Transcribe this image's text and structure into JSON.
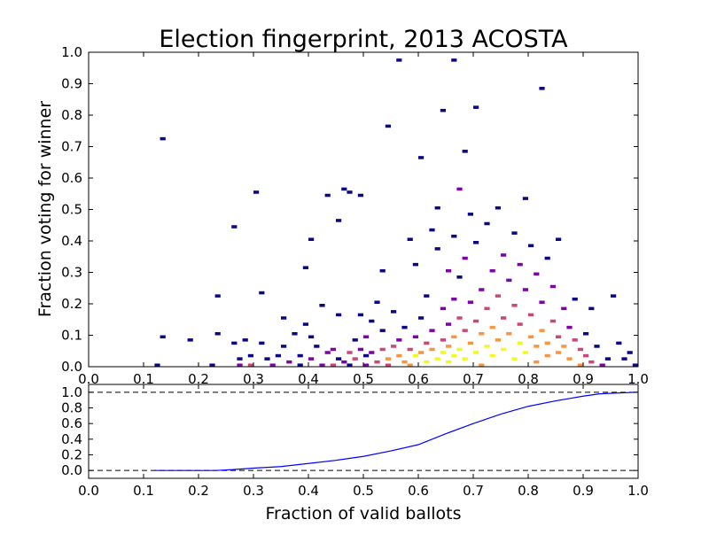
{
  "chart_data": [
    {
      "type": "heatmap",
      "title": "Election fingerprint, 2013 ACOSTA",
      "xlabel": "",
      "ylabel": "Fraction voting for winner",
      "xlim": [
        0.0,
        1.0
      ],
      "ylim": [
        0.0,
        1.0
      ],
      "x_ticks": [
        "0.0",
        "0.1",
        "0.2",
        "0.3",
        "0.4",
        "0.5",
        "0.6",
        "0.7",
        "0.8",
        "0.9",
        "1.0"
      ],
      "y_ticks": [
        "0.0",
        "0.1",
        "0.2",
        "0.3",
        "0.4",
        "0.5",
        "0.6",
        "0.7",
        "0.8",
        "0.9",
        "1.0"
      ],
      "bin_size": 0.01,
      "colormap": [
        "#0c0786",
        "#7e03a8",
        "#cb4778",
        "#f89540",
        "#f0f921"
      ],
      "grid": false,
      "cells": [
        [
          0.13,
          0.72,
          1
        ],
        [
          0.13,
          0.09,
          1
        ],
        [
          0.12,
          0.0,
          1
        ],
        [
          0.18,
          0.08,
          1
        ],
        [
          0.22,
          0.0,
          1
        ],
        [
          0.23,
          0.22,
          1
        ],
        [
          0.23,
          0.1,
          1
        ],
        [
          0.26,
          0.44,
          1
        ],
        [
          0.26,
          0.07,
          1
        ],
        [
          0.27,
          0.02,
          1
        ],
        [
          0.27,
          0.0,
          2
        ],
        [
          0.28,
          0.08,
          1
        ],
        [
          0.29,
          0.03,
          1
        ],
        [
          0.29,
          0.0,
          3
        ],
        [
          0.3,
          0.55,
          1
        ],
        [
          0.31,
          0.23,
          1
        ],
        [
          0.31,
          0.07,
          1
        ],
        [
          0.32,
          0.02,
          1
        ],
        [
          0.33,
          0.0,
          2
        ],
        [
          0.34,
          0.03,
          1
        ],
        [
          0.35,
          0.15,
          1
        ],
        [
          0.35,
          0.06,
          1
        ],
        [
          0.36,
          0.01,
          2
        ],
        [
          0.37,
          0.1,
          1
        ],
        [
          0.38,
          0.03,
          1
        ],
        [
          0.38,
          0.0,
          1
        ],
        [
          0.39,
          0.13,
          1
        ],
        [
          0.39,
          0.31,
          1
        ],
        [
          0.4,
          0.4,
          1
        ],
        [
          0.4,
          0.09,
          1
        ],
        [
          0.4,
          0.02,
          2
        ],
        [
          0.41,
          0.06,
          1
        ],
        [
          0.42,
          0.19,
          1
        ],
        [
          0.42,
          0.0,
          2
        ],
        [
          0.43,
          0.54,
          1
        ],
        [
          0.43,
          0.04,
          2
        ],
        [
          0.44,
          0.05,
          2
        ],
        [
          0.44,
          0.0,
          3
        ],
        [
          0.45,
          0.46,
          1
        ],
        [
          0.45,
          0.16,
          1
        ],
        [
          0.45,
          0.02,
          1
        ],
        [
          0.46,
          0.56,
          1
        ],
        [
          0.46,
          0.01,
          2
        ],
        [
          0.47,
          0.55,
          1
        ],
        [
          0.47,
          0.04,
          3
        ],
        [
          0.47,
          0.0,
          1
        ],
        [
          0.48,
          0.08,
          1
        ],
        [
          0.48,
          0.02,
          3
        ],
        [
          0.49,
          0.54,
          1
        ],
        [
          0.49,
          0.16,
          1
        ],
        [
          0.49,
          0.05,
          2
        ],
        [
          0.5,
          0.09,
          2
        ],
        [
          0.5,
          0.03,
          1
        ],
        [
          0.5,
          0.0,
          2
        ],
        [
          0.51,
          0.14,
          1
        ],
        [
          0.51,
          0.04,
          2
        ],
        [
          0.52,
          0.2,
          1
        ],
        [
          0.52,
          0.01,
          3
        ],
        [
          0.53,
          0.11,
          1
        ],
        [
          0.53,
          0.05,
          3
        ],
        [
          0.53,
          0.3,
          1
        ],
        [
          0.54,
          0.76,
          1
        ],
        [
          0.54,
          0.02,
          4
        ],
        [
          0.54,
          0.0,
          3
        ],
        [
          0.55,
          0.06,
          3
        ],
        [
          0.55,
          0.17,
          1
        ],
        [
          0.56,
          0.97,
          1
        ],
        [
          0.56,
          0.08,
          2
        ],
        [
          0.56,
          0.03,
          4
        ],
        [
          0.57,
          0.12,
          1
        ],
        [
          0.57,
          0.01,
          4
        ],
        [
          0.58,
          0.05,
          3
        ],
        [
          0.58,
          0.4,
          1
        ],
        [
          0.58,
          0.0,
          4
        ],
        [
          0.59,
          0.09,
          2
        ],
        [
          0.59,
          0.03,
          5
        ],
        [
          0.59,
          0.32,
          1
        ],
        [
          0.6,
          0.66,
          1
        ],
        [
          0.6,
          0.15,
          1
        ],
        [
          0.6,
          0.04,
          4
        ],
        [
          0.61,
          0.07,
          3
        ],
        [
          0.61,
          0.01,
          5
        ],
        [
          0.61,
          0.22,
          1
        ],
        [
          0.62,
          0.43,
          1
        ],
        [
          0.62,
          0.05,
          4
        ],
        [
          0.62,
          0.11,
          2
        ],
        [
          0.63,
          0.02,
          5
        ],
        [
          0.63,
          0.37,
          1
        ],
        [
          0.63,
          0.5,
          1
        ],
        [
          0.64,
          0.81,
          1
        ],
        [
          0.64,
          0.08,
          3
        ],
        [
          0.64,
          0.18,
          2
        ],
        [
          0.64,
          0.04,
          5
        ],
        [
          0.65,
          0.3,
          2
        ],
        [
          0.65,
          0.13,
          2
        ],
        [
          0.65,
          0.06,
          4
        ],
        [
          0.65,
          0.01,
          5
        ],
        [
          0.66,
          0.97,
          1
        ],
        [
          0.66,
          0.41,
          1
        ],
        [
          0.66,
          0.21,
          2
        ],
        [
          0.66,
          0.09,
          4
        ],
        [
          0.66,
          0.03,
          5
        ],
        [
          0.67,
          0.56,
          2
        ],
        [
          0.67,
          0.28,
          1
        ],
        [
          0.67,
          0.15,
          3
        ],
        [
          0.67,
          0.05,
          5
        ],
        [
          0.68,
          0.68,
          1
        ],
        [
          0.68,
          0.34,
          2
        ],
        [
          0.68,
          0.11,
          3
        ],
        [
          0.68,
          0.02,
          5
        ],
        [
          0.69,
          0.48,
          1
        ],
        [
          0.69,
          0.2,
          2
        ],
        [
          0.69,
          0.07,
          4
        ],
        [
          0.7,
          0.82,
          1
        ],
        [
          0.7,
          0.39,
          1
        ],
        [
          0.7,
          0.14,
          3
        ],
        [
          0.7,
          0.04,
          5
        ],
        [
          0.71,
          0.24,
          2
        ],
        [
          0.71,
          0.1,
          4
        ],
        [
          0.71,
          0.0,
          4
        ],
        [
          0.72,
          0.45,
          1
        ],
        [
          0.72,
          0.18,
          3
        ],
        [
          0.72,
          0.06,
          5
        ],
        [
          0.73,
          0.3,
          2
        ],
        [
          0.73,
          0.12,
          4
        ],
        [
          0.73,
          0.03,
          5
        ],
        [
          0.74,
          0.5,
          1
        ],
        [
          0.74,
          0.22,
          3
        ],
        [
          0.74,
          0.08,
          4
        ],
        [
          0.75,
          0.35,
          2
        ],
        [
          0.75,
          0.15,
          3
        ],
        [
          0.75,
          0.05,
          5
        ],
        [
          0.76,
          0.27,
          2
        ],
        [
          0.76,
          0.1,
          4
        ],
        [
          0.77,
          0.42,
          1
        ],
        [
          0.77,
          0.19,
          3
        ],
        [
          0.77,
          0.02,
          5
        ],
        [
          0.78,
          0.32,
          2
        ],
        [
          0.78,
          0.13,
          3
        ],
        [
          0.78,
          0.07,
          5
        ],
        [
          0.79,
          0.53,
          1
        ],
        [
          0.79,
          0.24,
          2
        ],
        [
          0.79,
          0.04,
          5
        ],
        [
          0.8,
          0.38,
          1
        ],
        [
          0.8,
          0.16,
          3
        ],
        [
          0.8,
          0.09,
          4
        ],
        [
          0.81,
          0.29,
          2
        ],
        [
          0.81,
          0.06,
          4
        ],
        [
          0.81,
          0.01,
          4
        ],
        [
          0.82,
          0.88,
          1
        ],
        [
          0.82,
          0.2,
          2
        ],
        [
          0.82,
          0.11,
          4
        ],
        [
          0.83,
          0.34,
          1
        ],
        [
          0.83,
          0.07,
          4
        ],
        [
          0.83,
          0.03,
          4
        ],
        [
          0.84,
          0.25,
          2
        ],
        [
          0.84,
          0.14,
          3
        ],
        [
          0.85,
          0.4,
          1
        ],
        [
          0.85,
          0.09,
          3
        ],
        [
          0.85,
          0.04,
          4
        ],
        [
          0.86,
          0.18,
          2
        ],
        [
          0.86,
          0.06,
          4
        ],
        [
          0.87,
          0.12,
          2
        ],
        [
          0.87,
          0.02,
          4
        ],
        [
          0.88,
          0.21,
          1
        ],
        [
          0.88,
          0.08,
          3
        ],
        [
          0.89,
          0.05,
          3
        ],
        [
          0.89,
          0.0,
          4
        ],
        [
          0.9,
          0.1,
          1
        ],
        [
          0.9,
          0.03,
          3
        ],
        [
          0.91,
          0.18,
          1
        ],
        [
          0.91,
          0.01,
          3
        ],
        [
          0.92,
          0.06,
          1
        ],
        [
          0.93,
          0.0,
          2
        ],
        [
          0.95,
          0.22,
          1
        ],
        [
          0.96,
          0.07,
          1
        ],
        [
          0.97,
          0.02,
          1
        ],
        [
          0.99,
          0.0,
          1
        ],
        [
          0.98,
          0.04,
          1
        ],
        [
          0.94,
          0.02,
          1
        ]
      ]
    },
    {
      "type": "line",
      "xlabel": "Fraction of valid ballots",
      "ylabel": "",
      "xlim": [
        0.0,
        1.0
      ],
      "ylim": [
        -0.1,
        1.1
      ],
      "x_ticks": [
        "0.0",
        "0.1",
        "0.2",
        "0.3",
        "0.4",
        "0.5",
        "0.6",
        "0.7",
        "0.8",
        "0.9",
        "1.0"
      ],
      "y_ticks": [
        "0.0",
        "0.2",
        "0.4",
        "0.6",
        "0.8",
        "1.0"
      ],
      "reference_lines": [
        0.0,
        1.0
      ],
      "series_color": "#0000ff",
      "x": [
        0.12,
        0.15,
        0.2,
        0.23,
        0.26,
        0.3,
        0.35,
        0.4,
        0.45,
        0.5,
        0.55,
        0.6,
        0.65,
        0.7,
        0.75,
        0.8,
        0.85,
        0.9,
        0.93,
        0.96,
        1.0
      ],
      "y": [
        0.0,
        0.0,
        0.0,
        0.0,
        0.01,
        0.03,
        0.05,
        0.09,
        0.13,
        0.18,
        0.25,
        0.33,
        0.47,
        0.6,
        0.72,
        0.82,
        0.89,
        0.95,
        0.98,
        0.99,
        1.0
      ]
    }
  ]
}
